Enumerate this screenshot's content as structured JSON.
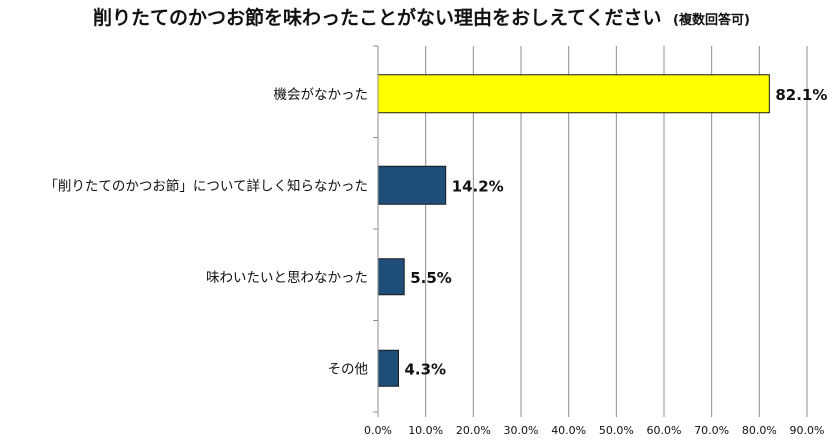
{
  "chart_data": {
    "type": "bar",
    "orientation": "horizontal",
    "title": "削りたてのかつお節を味わったことがない理由をおしえてください",
    "subtitle": "(複数回答可)",
    "categories": [
      "機会がなかった",
      "「削りたてのかつお節」について詳しく知らなかった",
      "味わいたいと思わなかった",
      "その他"
    ],
    "values": [
      82.1,
      14.2,
      5.5,
      4.3
    ],
    "value_labels": [
      "82.1%",
      "14.2%",
      "5.5%",
      "4.3%"
    ],
    "bar_colors": [
      "#ffff00",
      "#1f4e79",
      "#1f4e79",
      "#1f4e79"
    ],
    "xlim": [
      0,
      90
    ],
    "x_ticks": [
      0,
      10,
      20,
      30,
      40,
      50,
      60,
      70,
      80,
      90
    ],
    "x_tick_labels": [
      "0.0%",
      "10.0%",
      "20.0%",
      "30.0%",
      "40.0%",
      "50.0%",
      "60.0%",
      "70.0%",
      "80.0%",
      "90.0%"
    ],
    "grid": true,
    "xlabel": "",
    "ylabel": ""
  }
}
